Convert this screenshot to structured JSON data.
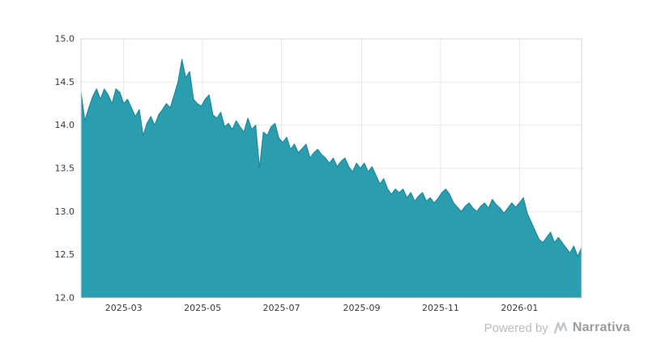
{
  "footer": {
    "powered_by": "Powered by",
    "brand": "Narrativa"
  },
  "colors": {
    "area_fill": "#2a9dae",
    "area_stroke": "#1e8a9b",
    "grid": "#e8e8e8",
    "plot_border": "#d4d4d4",
    "axis_text": "#3a3a3a",
    "background": "#ffffff",
    "footer_text": "#bcbcbc",
    "brand_text": "#9b9b9b",
    "logo": "#c2c7ca"
  },
  "chart_data": {
    "type": "area",
    "title": "",
    "xlabel": "",
    "ylabel": "",
    "ylim": [
      12.0,
      15.0
    ],
    "yticks": [
      12.0,
      12.5,
      13.0,
      13.5,
      14.0,
      14.5,
      15.0
    ],
    "xticks": [
      "2025-03",
      "2025-05",
      "2025-07",
      "2025-09",
      "2025-11",
      "2026-01"
    ],
    "grid": true,
    "legend": false,
    "x": [
      "2025-01-27",
      "2025-01-30",
      "2025-02-02",
      "2025-02-05",
      "2025-02-08",
      "2025-02-11",
      "2025-02-14",
      "2025-02-17",
      "2025-02-20",
      "2025-02-23",
      "2025-02-26",
      "2025-03-01",
      "2025-03-04",
      "2025-03-07",
      "2025-03-10",
      "2025-03-13",
      "2025-03-16",
      "2025-03-19",
      "2025-03-22",
      "2025-03-25",
      "2025-03-28",
      "2025-03-31",
      "2025-04-03",
      "2025-04-06",
      "2025-04-09",
      "2025-04-12",
      "2025-04-15",
      "2025-04-18",
      "2025-04-21",
      "2025-04-24",
      "2025-04-27",
      "2025-04-30",
      "2025-05-03",
      "2025-05-06",
      "2025-05-09",
      "2025-05-12",
      "2025-05-15",
      "2025-05-18",
      "2025-05-21",
      "2025-05-24",
      "2025-05-27",
      "2025-05-30",
      "2025-06-02",
      "2025-06-05",
      "2025-06-08",
      "2025-06-11",
      "2025-06-14",
      "2025-06-17",
      "2025-06-20",
      "2025-06-23",
      "2025-06-26",
      "2025-06-29",
      "2025-07-02",
      "2025-07-05",
      "2025-07-08",
      "2025-07-11",
      "2025-07-14",
      "2025-07-17",
      "2025-07-20",
      "2025-07-23",
      "2025-07-26",
      "2025-07-29",
      "2025-08-01",
      "2025-08-04",
      "2025-08-07",
      "2025-08-10",
      "2025-08-13",
      "2025-08-16",
      "2025-08-19",
      "2025-08-22",
      "2025-08-25",
      "2025-08-28",
      "2025-08-31",
      "2025-09-03",
      "2025-09-06",
      "2025-09-09",
      "2025-09-12",
      "2025-09-15",
      "2025-09-18",
      "2025-09-21",
      "2025-09-24",
      "2025-09-27",
      "2025-09-30",
      "2025-10-03",
      "2025-10-06",
      "2025-10-09",
      "2025-10-12",
      "2025-10-15",
      "2025-10-18",
      "2025-10-21",
      "2025-10-24",
      "2025-10-27",
      "2025-10-30",
      "2025-11-02",
      "2025-11-05",
      "2025-11-08",
      "2025-11-11",
      "2025-11-14",
      "2025-11-17",
      "2025-11-20",
      "2025-11-23",
      "2025-11-26",
      "2025-11-29",
      "2025-12-02",
      "2025-12-05",
      "2025-12-08",
      "2025-12-11",
      "2025-12-14",
      "2025-12-17",
      "2025-12-20",
      "2025-12-23",
      "2025-12-26",
      "2025-12-29",
      "2026-01-01",
      "2026-01-04",
      "2026-01-07",
      "2026-01-10",
      "2026-01-13",
      "2026-01-16",
      "2026-01-19",
      "2026-01-22",
      "2026-01-25",
      "2026-01-28",
      "2026-01-31",
      "2026-02-03",
      "2026-02-06",
      "2026-02-09",
      "2026-02-12",
      "2026-02-15",
      "2026-02-18"
    ],
    "y": [
      14.38,
      14.05,
      14.2,
      14.33,
      14.42,
      14.3,
      14.42,
      14.35,
      14.25,
      14.42,
      14.38,
      14.25,
      14.3,
      14.2,
      14.1,
      14.18,
      13.88,
      14.02,
      14.1,
      14.0,
      14.12,
      14.18,
      14.25,
      14.2,
      14.35,
      14.5,
      14.76,
      14.55,
      14.62,
      14.3,
      14.25,
      14.22,
      14.3,
      14.35,
      14.12,
      14.08,
      14.15,
      13.98,
      14.02,
      13.95,
      14.05,
      13.98,
      13.92,
      14.08,
      13.95,
      14.0,
      13.5,
      13.92,
      13.88,
      13.98,
      14.02,
      13.85,
      13.8,
      13.86,
      13.72,
      13.78,
      13.68,
      13.73,
      13.78,
      13.62,
      13.68,
      13.72,
      13.66,
      13.62,
      13.56,
      13.62,
      13.52,
      13.58,
      13.62,
      13.52,
      13.46,
      13.56,
      13.5,
      13.56,
      13.46,
      13.52,
      13.42,
      13.32,
      13.38,
      13.26,
      13.2,
      13.26,
      13.22,
      13.26,
      13.16,
      13.22,
      13.12,
      13.18,
      13.22,
      13.12,
      13.16,
      13.1,
      13.15,
      13.22,
      13.26,
      13.2,
      13.1,
      13.05,
      13.0,
      13.06,
      13.1,
      13.04,
      13.0,
      13.06,
      13.1,
      13.04,
      13.14,
      13.08,
      13.04,
      12.98,
      13.04,
      13.1,
      13.05,
      13.1,
      13.16,
      12.98,
      12.88,
      12.78,
      12.68,
      12.64,
      12.7,
      12.76,
      12.64,
      12.7,
      12.64,
      12.58,
      12.52,
      12.6,
      12.48,
      12.58
    ]
  }
}
